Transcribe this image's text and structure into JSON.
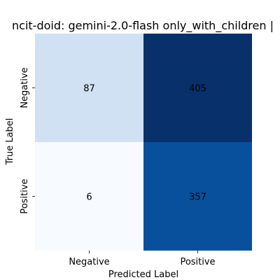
{
  "chart_data": {
    "type": "heatmap",
    "title": "ncit-doid: gemini-2.0-flash only_with_children |",
    "xlabel": "Predicted Label",
    "ylabel": "True Label",
    "x_categories": [
      "Negative",
      "Positive"
    ],
    "y_categories": [
      "Negative",
      "Positive"
    ],
    "values": [
      [
        87,
        405
      ],
      [
        6,
        357
      ]
    ],
    "colormap": "Blues",
    "colorbar": false,
    "cell_colors": [
      [
        "#cfe1f2",
        "#08306b"
      ],
      [
        "#f7fbff",
        "#08509b"
      ]
    ],
    "text_colors": [
      [
        "#262626",
        "#ffffff"
      ],
      [
        "#262626",
        "#ffffff"
      ]
    ]
  }
}
